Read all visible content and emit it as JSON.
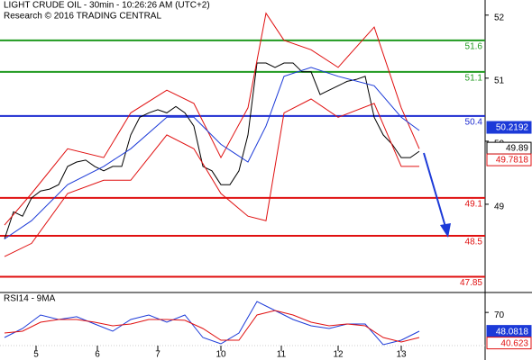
{
  "chart_data": [
    {
      "type": "line",
      "title": "LIGHT CRUDE OIL - 30min - 10:26:26 AM (UTC+2)",
      "subtitle": "Research © 2016 TRADING CENTRAL",
      "xlim": [
        -0.5,
        53.3
      ],
      "ylim": [
        47.6,
        52.24
      ],
      "yticks": [
        49,
        50,
        51,
        52
      ],
      "series": [
        {
          "color": "#000000",
          "x": [
            0,
            1,
            2,
            3,
            4,
            5,
            6,
            7,
            8,
            9,
            10,
            11,
            12,
            13,
            14,
            15,
            16,
            17,
            18,
            19,
            20,
            21,
            22,
            23,
            24,
            25,
            26,
            27,
            28,
            29,
            30,
            31,
            32,
            33,
            34,
            35,
            36,
            37,
            38,
            39,
            40,
            41,
            42,
            43,
            44,
            45,
            46
          ],
          "values": [
            48.45,
            48.88,
            48.81,
            49.1,
            49.21,
            49.24,
            49.31,
            49.6,
            49.67,
            49.7,
            49.6,
            49.53,
            49.6,
            49.6,
            50.1,
            50.38,
            50.45,
            50.5,
            50.45,
            50.55,
            50.45,
            50.24,
            49.6,
            49.53,
            49.31,
            49.31,
            49.53,
            50.1,
            51.24,
            51.24,
            51.17,
            51.24,
            51.24,
            51.1,
            51.1,
            50.74,
            50.81,
            50.88,
            50.95,
            50.98,
            51.03,
            50.38,
            50.1,
            49.95,
            49.74,
            49.74,
            49.84
          ]
        },
        {
          "color": "#e01010",
          "x": [
            0,
            3,
            7,
            11,
            14,
            18,
            21,
            24,
            27,
            29,
            31,
            34,
            37,
            41,
            44,
            46
          ],
          "values": [
            48.67,
            49.17,
            49.88,
            49.74,
            50.45,
            50.81,
            50.6,
            49.74,
            50.53,
            52.03,
            51.6,
            51.45,
            51.17,
            51.81,
            50.53,
            49.88
          ]
        },
        {
          "color": "#e01010",
          "x": [
            0,
            3,
            7,
            11,
            14,
            18,
            21,
            24,
            27,
            29,
            31,
            34,
            37,
            41,
            44,
            46
          ],
          "values": [
            48.17,
            48.38,
            49.17,
            49.38,
            49.38,
            50.1,
            49.88,
            49.17,
            48.81,
            48.74,
            50.45,
            50.67,
            50.38,
            50.6,
            49.6,
            49.6
          ]
        },
        {
          "color": "#1c3ad8",
          "x": [
            0,
            3,
            7,
            11,
            14,
            18,
            21,
            24,
            27,
            29,
            31,
            34,
            37,
            41,
            44,
            46
          ],
          "values": [
            48.45,
            48.74,
            49.31,
            49.6,
            49.88,
            50.38,
            50.38,
            49.95,
            49.67,
            50.24,
            51.03,
            51.17,
            51.03,
            50.88,
            50.38,
            50.17
          ]
        }
      ],
      "levels": [
        {
          "value": 51.6,
          "color": "#1f9a1f"
        },
        {
          "value": 51.1,
          "color": "#1f9a1f"
        },
        {
          "value": 50.4,
          "color": "#1c2ad0"
        },
        {
          "value": 49.1,
          "color": "#e01010"
        },
        {
          "value": 48.5,
          "color": "#e01010"
        },
        {
          "value": 47.85,
          "color": "#e01010"
        }
      ],
      "tags": [
        {
          "value": 50.2192,
          "color": "#1c3ad8",
          "style": "filled"
        },
        {
          "value": 49.89,
          "color": "#000000",
          "style": "outline"
        },
        {
          "value": 49.7818,
          "color": "#e01010",
          "style": "outline"
        }
      ]
    },
    {
      "type": "line",
      "title": "RSI14 - 9MA",
      "xlim": [
        -0.5,
        53.3
      ],
      "ylim": [
        20,
        90
      ],
      "yticks": [
        70
      ],
      "xticks": [
        {
          "value": 3.5,
          "label": "5"
        },
        {
          "value": 10.3,
          "label": "6"
        },
        {
          "value": 17,
          "label": "7"
        },
        {
          "value": 24,
          "label": "10"
        },
        {
          "value": 30.7,
          "label": "11"
        },
        {
          "value": 37,
          "label": "12"
        },
        {
          "value": 44,
          "label": "13"
        }
      ],
      "series": [
        {
          "color": "#1c3ad8",
          "x": [
            0,
            2,
            4,
            6,
            8,
            10,
            12,
            14,
            16,
            18,
            20,
            22,
            24,
            26,
            28,
            30,
            32,
            34,
            36,
            38,
            40,
            42,
            44,
            46
          ],
          "values": [
            40.9,
            51.3,
            67,
            61.8,
            65,
            56.6,
            48.2,
            61.8,
            67,
            58.7,
            67,
            40.9,
            33.6,
            46.1,
            82.7,
            72.2,
            61.8,
            54.5,
            51.3,
            56.6,
            56.6,
            32.5,
            37.8,
            48.2
          ]
        },
        {
          "color": "#e01010",
          "x": [
            0,
            2,
            4,
            6,
            8,
            10,
            12,
            14,
            16,
            18,
            20,
            22,
            24,
            26,
            28,
            30,
            32,
            34,
            36,
            38,
            40,
            42,
            44,
            46
          ],
          "values": [
            46.1,
            48.2,
            58.7,
            61.8,
            61.8,
            58.7,
            54.5,
            56.6,
            61.8,
            61.8,
            60.8,
            51.3,
            37.8,
            37.8,
            67,
            72.2,
            67,
            58.7,
            54.5,
            56.6,
            54.5,
            40.9,
            35.7,
            40.9
          ]
        }
      ],
      "tags": [
        {
          "value": 48.0818,
          "color": "#1c3ad8",
          "style": "filled"
        },
        {
          "value": 40.623,
          "color": "#e01010",
          "style": "outline"
        }
      ]
    }
  ]
}
